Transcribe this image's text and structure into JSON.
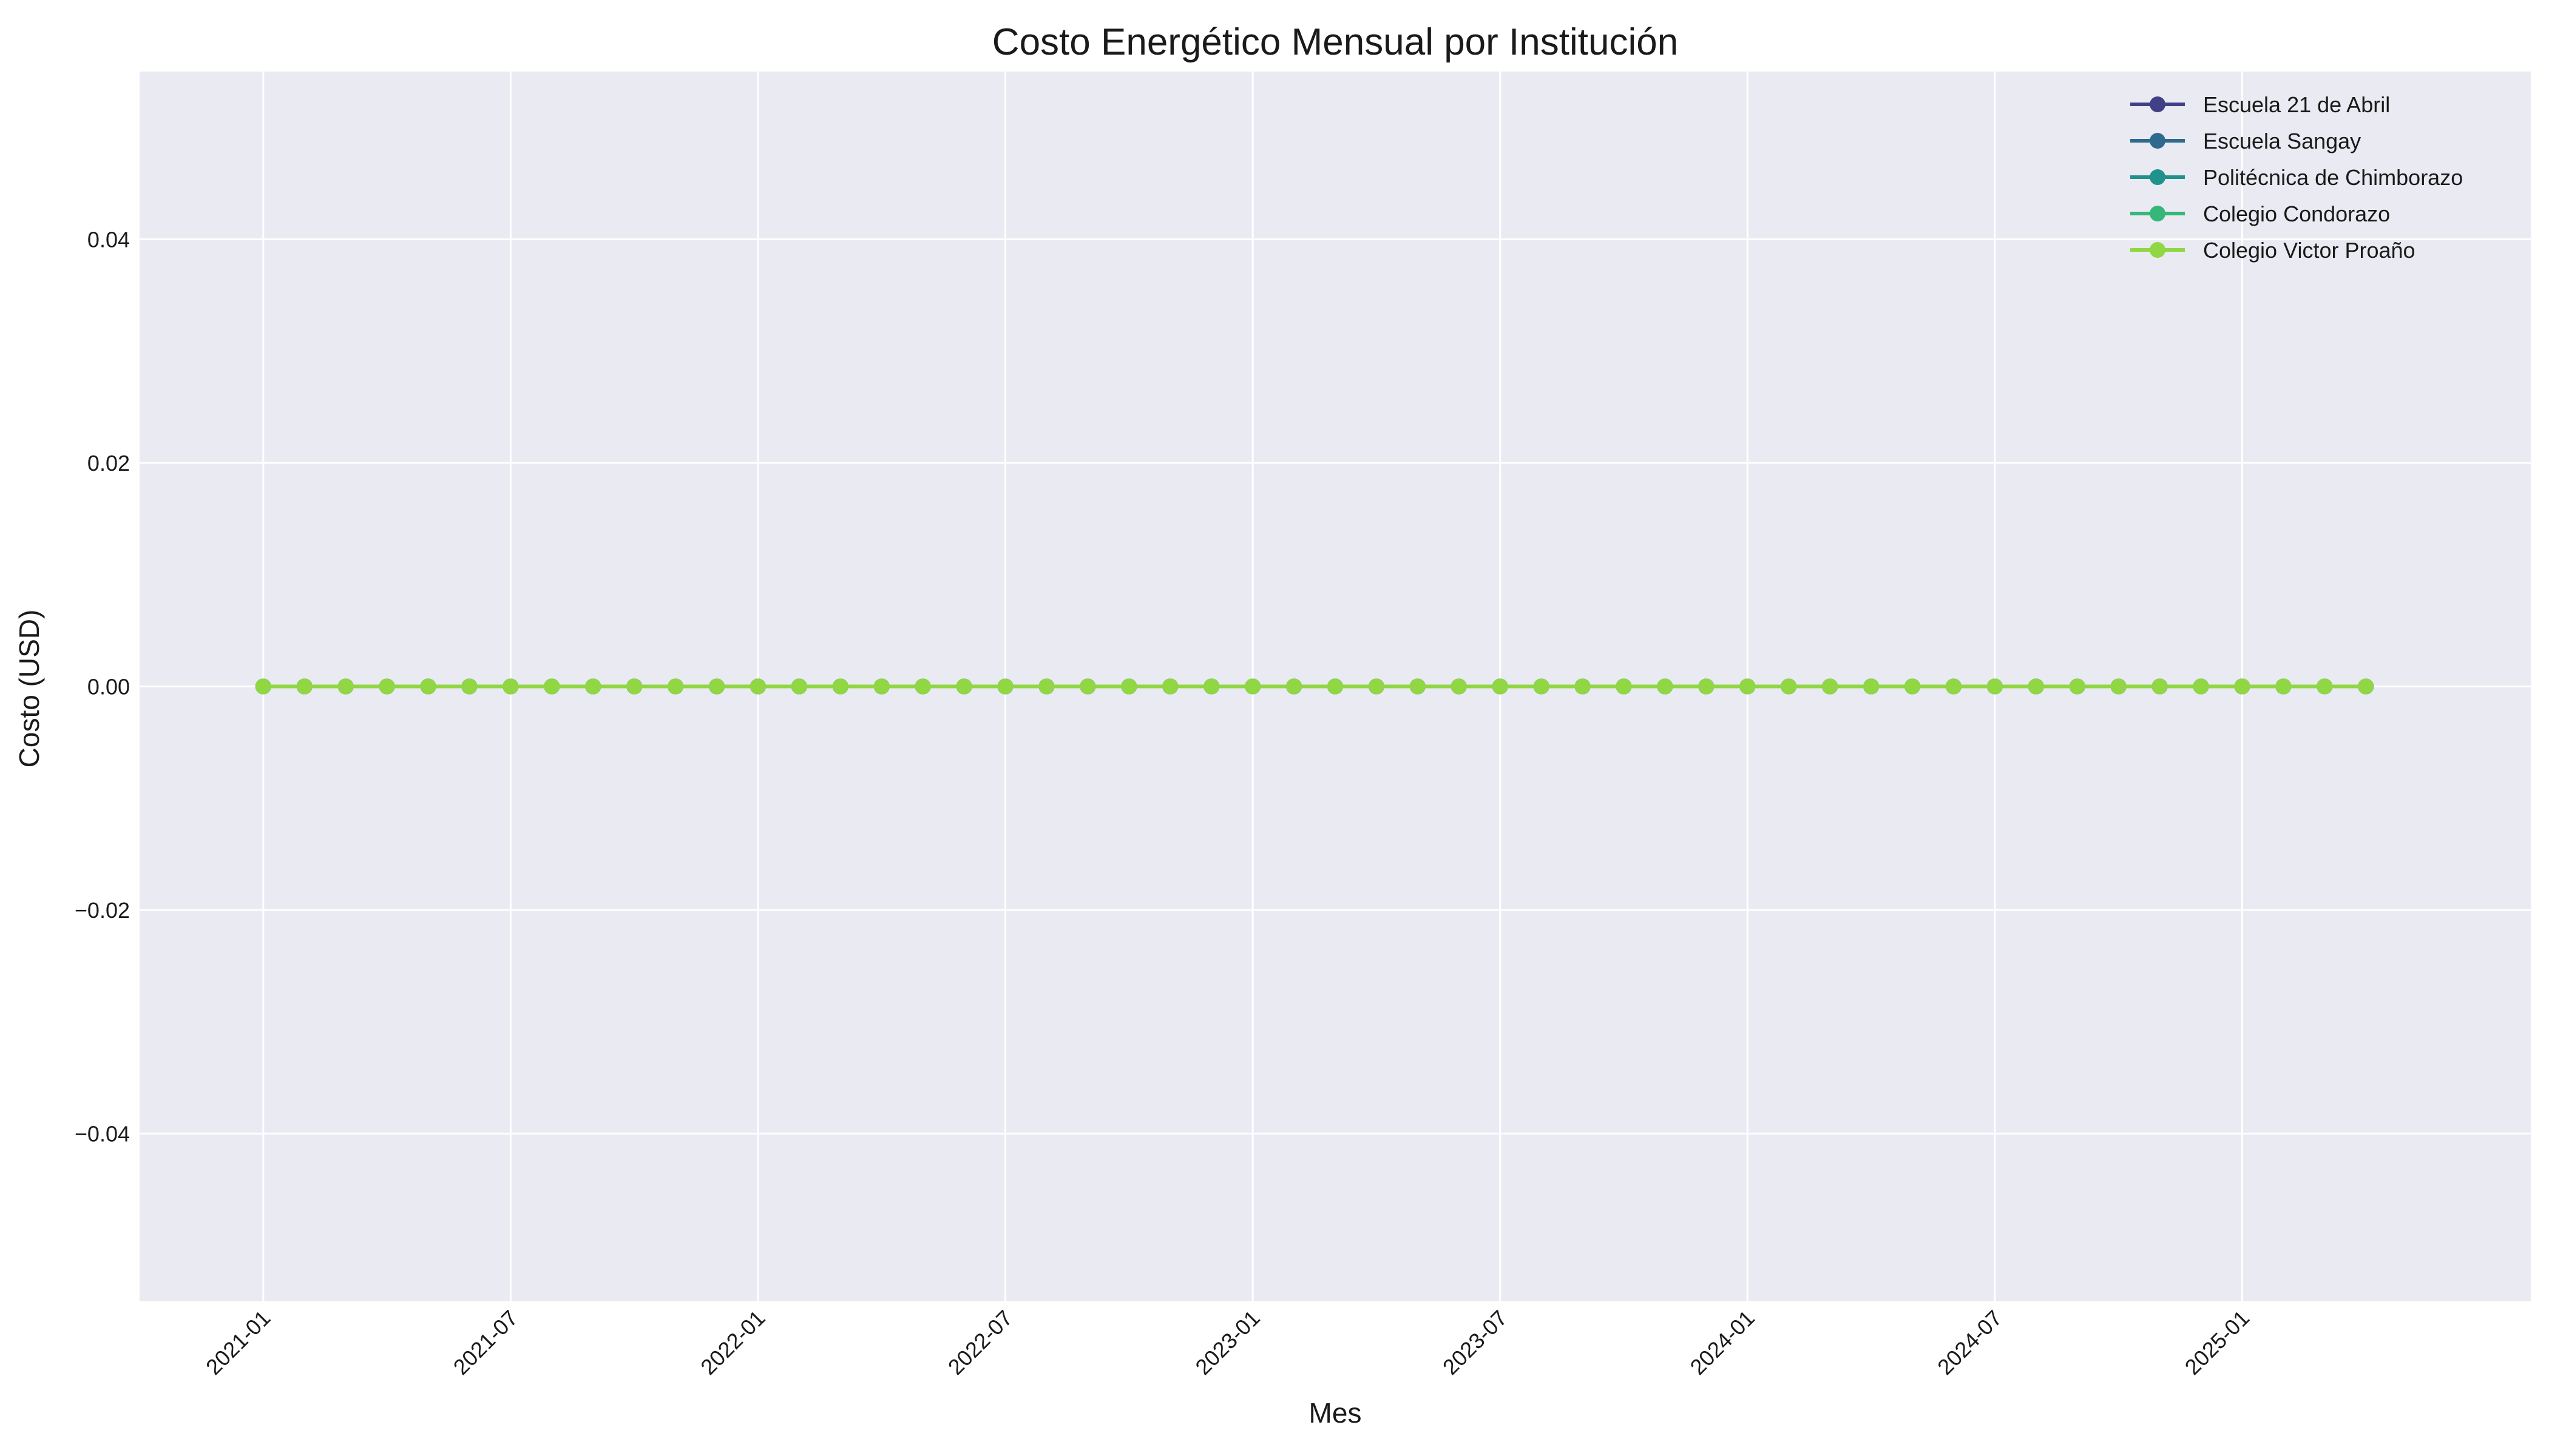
{
  "chart_data": {
    "type": "line",
    "title": "Costo Energético Mensual por Institución",
    "xlabel": "Mes",
    "ylabel": "Costo (USD)",
    "x_start": "2021-01",
    "x_count": 52,
    "x_ticks": [
      "2021-01",
      "2021-07",
      "2022-01",
      "2022-07",
      "2023-01",
      "2023-07",
      "2024-01",
      "2024-07",
      "2025-01"
    ],
    "y_ticks": [
      -0.04,
      -0.02,
      0.0,
      0.02,
      0.04
    ],
    "y_tick_labels": [
      "−0.04",
      "−0.02",
      "0.00",
      "0.02",
      "0.04"
    ],
    "ylim": [
      -0.055,
      0.055
    ],
    "xlim": [
      "2020-10",
      "2025-08"
    ],
    "grid": true,
    "legend_position": "top-right",
    "series": [
      {
        "name": "Escuela 21 de Abril",
        "color": "#413f85",
        "value_all_months": 0
      },
      {
        "name": "Escuela Sangay",
        "color": "#2e6a8e",
        "value_all_months": 0
      },
      {
        "name": "Politécnica de Chimborazo",
        "color": "#21918c",
        "value_all_months": 0
      },
      {
        "name": "Colegio Condorazo",
        "color": "#35b779",
        "value_all_months": 0
      },
      {
        "name": "Colegio Victor Proaño",
        "color": "#90d743",
        "value_all_months": 0
      }
    ],
    "colors": {
      "plot_background": "#eaeaf2",
      "grid": "#ffffff"
    }
  }
}
